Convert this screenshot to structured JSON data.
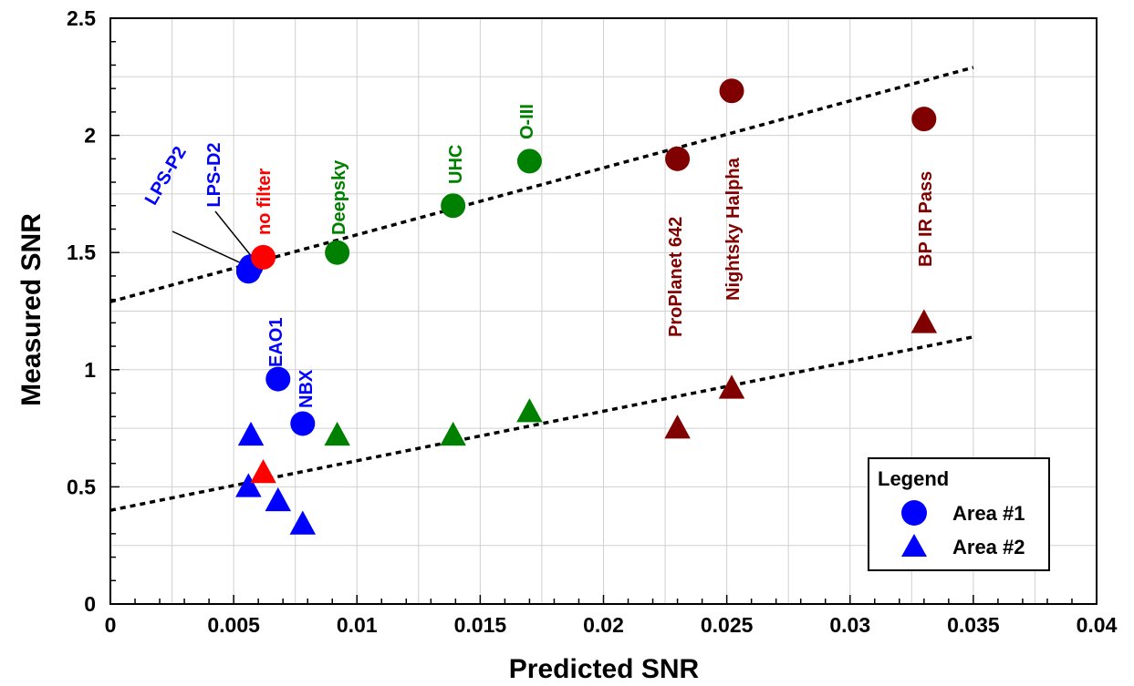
{
  "chart_data": {
    "type": "scatter",
    "title": "",
    "xlabel": "Predicted SNR",
    "ylabel": "Measured SNR",
    "xlim": [
      0,
      0.04
    ],
    "ylim": [
      0,
      2.5
    ],
    "x_ticks": [
      "0",
      "0.005",
      "0.01",
      "0.015",
      "0.02",
      "0.025",
      "0.03",
      "0.035",
      "0.04"
    ],
    "y_ticks": [
      "0",
      "0.5",
      "1",
      "1.5",
      "2",
      "2.5"
    ],
    "grid": true,
    "colors": {
      "blue": "#0000ff",
      "red": "#ff0000",
      "green": "#008000",
      "darkred": "#800000"
    },
    "filters": [
      {
        "name": "LPS-P2",
        "color": "blue",
        "x": 0.0056,
        "area1": 1.42,
        "area2": 0.5
      },
      {
        "name": "LPS-D2",
        "color": "blue",
        "x": 0.0057,
        "area1": 1.44,
        "area2": 0.72
      },
      {
        "name": "no filter",
        "color": "red",
        "x": 0.0062,
        "area1": 1.48,
        "area2": 0.56
      },
      {
        "name": "EAO1",
        "color": "blue",
        "x": 0.0068,
        "area1": 0.96,
        "area2": 0.44
      },
      {
        "name": "NBX",
        "color": "blue",
        "x": 0.0078,
        "area1": 0.77,
        "area2": 0.34
      },
      {
        "name": "Deepsky",
        "color": "green",
        "x": 0.0092,
        "area1": 1.5,
        "area2": 0.72
      },
      {
        "name": "UHC",
        "color": "green",
        "x": 0.0139,
        "area1": 1.7,
        "area2": 0.72
      },
      {
        "name": "O-III",
        "color": "green",
        "x": 0.017,
        "area1": 1.89,
        "area2": 0.82
      },
      {
        "name": "ProPlanet 642",
        "color": "darkred",
        "x": 0.023,
        "area1": 1.9,
        "area2": 0.75
      },
      {
        "name": "Nightsky Halpha",
        "color": "darkred",
        "x": 0.0252,
        "area1": 2.19,
        "area2": 0.92
      },
      {
        "name": "BP IR Pass",
        "color": "darkred",
        "x": 0.033,
        "area1": 2.07,
        "area2": 1.2
      }
    ],
    "trendlines": [
      {
        "series": "Area #1",
        "x": [
          0,
          0.035
        ],
        "y": [
          1.29,
          2.29
        ]
      },
      {
        "series": "Area #2",
        "x": [
          0,
          0.035
        ],
        "y": [
          0.4,
          1.14
        ]
      }
    ],
    "legend": {
      "title": "Legend",
      "position": "bottom-right",
      "entries": [
        {
          "label": "Area #1",
          "marker": "circle",
          "color": "#0000ff"
        },
        {
          "label": "Area #2",
          "marker": "triangle",
          "color": "#0000ff"
        }
      ]
    }
  }
}
